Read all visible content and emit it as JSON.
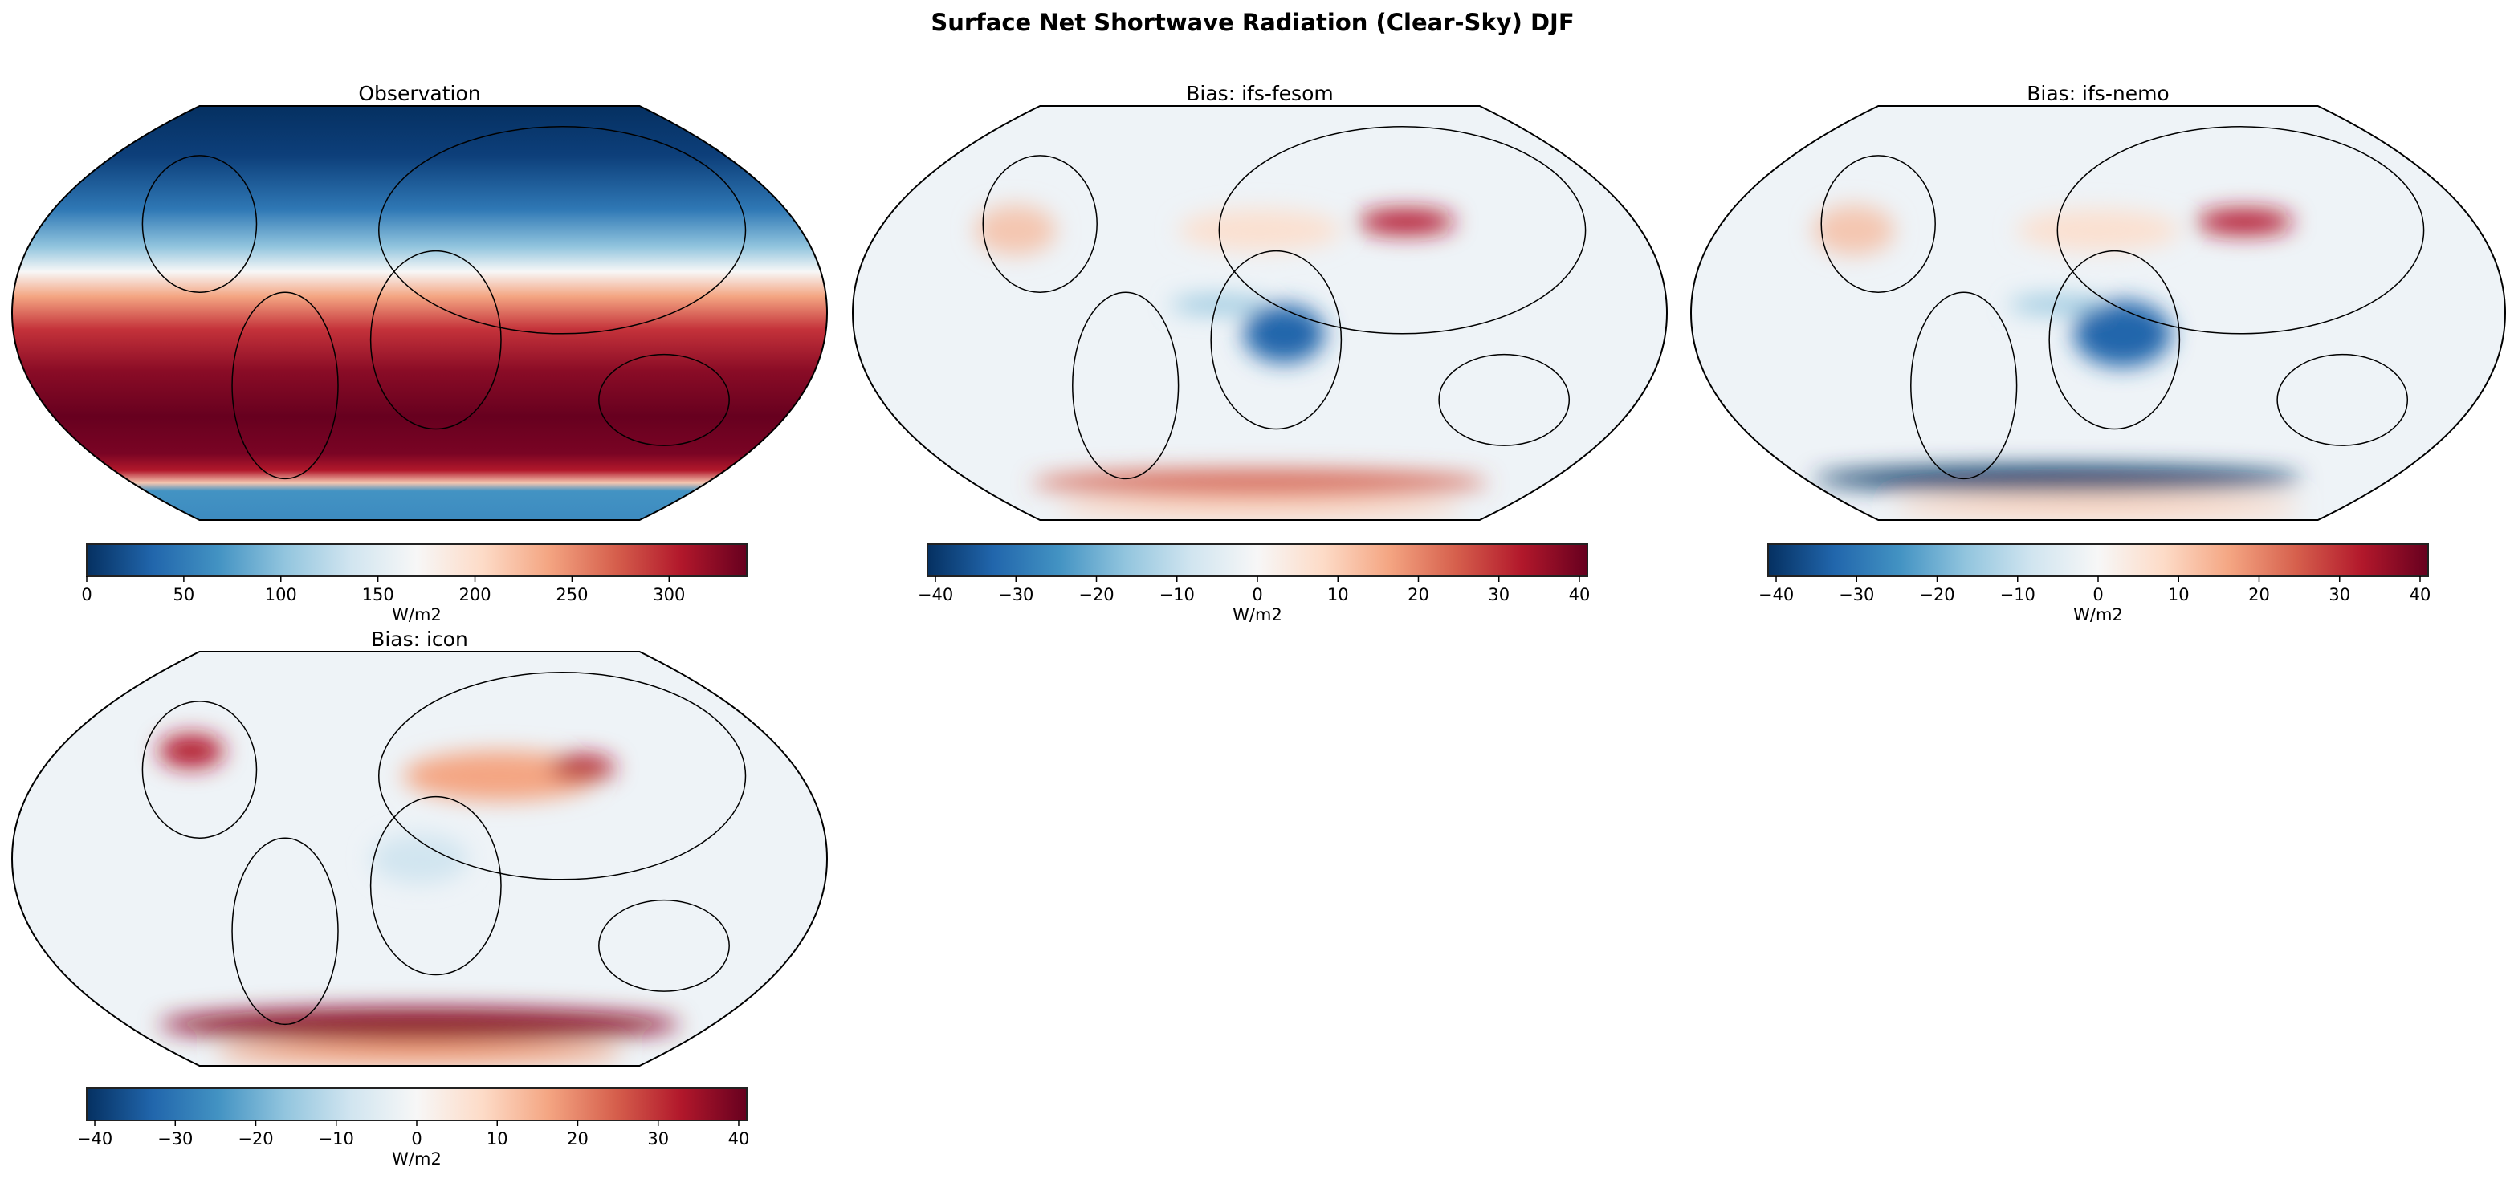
{
  "figure_title": "Surface Net Shortwave Radiation (Clear-Sky) DJF",
  "colors": {
    "colormap": "RdBu_r",
    "colormap_stops": [
      "#053061",
      "#2166ac",
      "#4393c3",
      "#92c5de",
      "#d1e5f0",
      "#f7f7f7",
      "#fddbc7",
      "#f4a582",
      "#d6604d",
      "#b2182b",
      "#67001f"
    ],
    "coastline": "#000000"
  },
  "chart_data": [
    {
      "type": "heatmap",
      "title": "Observation",
      "projection": "Robinson",
      "colorbar": {
        "label": "W/m2",
        "range": [
          0,
          340
        ],
        "ticks": [
          0,
          50,
          100,
          150,
          200,
          250,
          300
        ]
      }
    },
    {
      "type": "heatmap",
      "title": "Bias: ifs-fesom",
      "projection": "Robinson",
      "colorbar": {
        "label": "W/m2",
        "range": [
          -41,
          41
        ],
        "ticks": [
          -40,
          -30,
          -20,
          -10,
          0,
          10,
          20,
          30,
          40
        ]
      }
    },
    {
      "type": "heatmap",
      "title": "Bias: ifs-nemo",
      "projection": "Robinson",
      "colorbar": {
        "label": "W/m2",
        "range": [
          -41,
          41
        ],
        "ticks": [
          -40,
          -30,
          -20,
          -10,
          0,
          10,
          20,
          30,
          40
        ]
      }
    },
    {
      "type": "heatmap",
      "title": "Bias: icon",
      "projection": "Robinson",
      "colorbar": {
        "label": "W/m2",
        "range": [
          -41,
          41
        ],
        "ticks": [
          -40,
          -30,
          -20,
          -10,
          0,
          10,
          20,
          30,
          40
        ]
      }
    }
  ]
}
